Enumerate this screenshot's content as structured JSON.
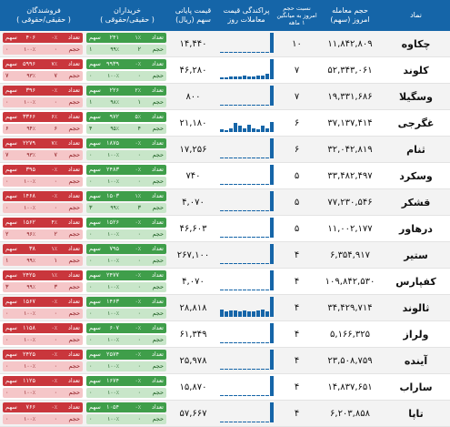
{
  "header": {
    "symbol": "نماد",
    "volume": "حجم معامله\nامروز (سهم)",
    "avg_ratio": "نسبت حجم\nامروز به میانگین\n۱ ماهه",
    "spark": "پراکندگی قیمت\nمعاملات روز",
    "price": "قیمت پایانی\nسهم (ریال)",
    "buyers": "خریداران\n( حقیقی/حقوقی )",
    "sellers": "فروشندگان\n( حقیقی/حقوقی )"
  },
  "colors": {
    "header_bg": "#1565a8",
    "spark_bar": "#1565a8",
    "buyer_bar": "#3f9e4a",
    "buyer_bar_light": "#c8e6c9",
    "seller_bar": "#c9363c",
    "seller_bar_light": "#f5c6c8"
  },
  "labels": {
    "count": "تعداد",
    "volume": "حجم",
    "share": "سهم"
  },
  "rows": [
    {
      "symbol": "چکاوه",
      "volume": "۱۱,۸۴۲,۸۰۹",
      "avg": "۱۰",
      "price": "۱۴,۴۴۰",
      "spark": [
        0.05,
        0.05,
        0.05,
        0.05,
        0.05,
        0.05,
        0.05,
        0.05,
        0.05,
        0.05,
        0.05,
        1.0
      ],
      "buyers": {
        "pct1": "۱٪",
        "n1": "۲۴۱",
        "n2": "۲",
        "pct2": "۹۹٪",
        "n3": "۱"
      },
      "sellers": {
        "pct1": "۰٪",
        "n1": "۴۰۶",
        "n2": "۰",
        "pct2": "۱۰۰٪",
        "n3": "۰"
      }
    },
    {
      "symbol": "کلوند",
      "volume": "۵۲,۳۴۳,۰۶۱",
      "avg": "۷",
      "price": "۴۶,۲۸۰",
      "spark": [
        0.1,
        0.1,
        0.15,
        0.15,
        0.15,
        0.2,
        0.15,
        0.15,
        0.2,
        0.2,
        0.25,
        1.0
      ],
      "buyers": {
        "pct1": "۰٪",
        "n1": "۹۹۳۹",
        "n2": "۰",
        "pct2": "۱۰۰٪",
        "n3": "۰"
      },
      "sellers": {
        "pct1": "۷٪",
        "n1": "۵۹۹۶",
        "n2": "۷",
        "pct2": "۹۳٪",
        "n3": "۷"
      }
    },
    {
      "symbol": "وسگیلا",
      "volume": "۱۹,۳۳۱,۶۸۶",
      "avg": "۷",
      "price": "۸۰۰",
      "spark": [
        0.05,
        0.05,
        0.05,
        0.05,
        0.05,
        0.05,
        0.05,
        0.05,
        0.05,
        0.05,
        0.05,
        1.0
      ],
      "buyers": {
        "pct1": "۲٪",
        "n1": "۲۲۶",
        "n2": "۱",
        "pct2": "۹۸٪",
        "n3": "۱"
      },
      "sellers": {
        "pct1": "۰٪",
        "n1": "۳۹۶",
        "n2": "۰",
        "pct2": "۱۰۰٪",
        "n3": "۰"
      }
    },
    {
      "symbol": "غگرجی",
      "volume": "۳۷,۱۳۷,۴۱۴",
      "avg": "۶",
      "price": "۲۱,۱۸۰",
      "spark": [
        0.15,
        0.1,
        0.2,
        0.45,
        0.3,
        0.2,
        0.35,
        0.2,
        0.15,
        0.3,
        0.2,
        0.5
      ],
      "buyers": {
        "pct1": "۵٪",
        "n1": "۹۷۲",
        "n2": "۴",
        "pct2": "۹۵٪",
        "n3": "۴"
      },
      "sellers": {
        "pct1": "۶٪",
        "n1": "۳۳۶۶",
        "n2": "۶",
        "pct2": "۹۴٪",
        "n3": "۶"
      }
    },
    {
      "symbol": "ثنام",
      "volume": "۳۲,۰۴۲,۸۱۹",
      "avg": "۶",
      "price": "۱۷,۲۵۶",
      "spark": [
        0.05,
        0.05,
        0.05,
        0.05,
        0.05,
        0.05,
        0.05,
        0.05,
        0.05,
        0.05,
        0.05,
        1.0
      ],
      "buyers": {
        "pct1": "۰٪",
        "n1": "۱۸۷۵",
        "n2": "۰",
        "pct2": "۱۰۰٪",
        "n3": "۰"
      },
      "sellers": {
        "pct1": "۷٪",
        "n1": "۲۲۷۹",
        "n2": "۷",
        "pct2": "۹۳٪",
        "n3": "۷"
      }
    },
    {
      "symbol": "وسکرد",
      "volume": "۳۳,۴۸۲,۴۹۷",
      "avg": "۵",
      "price": "۷۴۰",
      "spark": [
        0.05,
        0.05,
        0.05,
        0.05,
        0.05,
        0.05,
        0.05,
        0.05,
        0.05,
        0.05,
        0.05,
        1.0
      ],
      "buyers": {
        "pct1": "۰٪",
        "n1": "۲۴۸۳",
        "n2": "۰",
        "pct2": "۱۰۰٪",
        "n3": "۰"
      },
      "sellers": {
        "pct1": "۰٪",
        "n1": "۳۹۵",
        "n2": "۰",
        "pct2": "۱۰۰٪",
        "n3": "۰"
      }
    },
    {
      "symbol": "قشکر",
      "volume": "۷۷,۲۳۰,۵۴۶",
      "avg": "۵",
      "price": "۴,۰۷۰",
      "spark": [
        0.05,
        0.05,
        0.05,
        0.05,
        0.05,
        0.05,
        0.05,
        0.05,
        0.05,
        0.05,
        0.05,
        1.0
      ],
      "buyers": {
        "pct1": "۱٪",
        "n1": "۱۵۰۳",
        "n2": "۳",
        "pct2": "۹۹٪",
        "n3": "۳"
      },
      "sellers": {
        "pct1": "۰٪",
        "n1": "۱۴۶۸",
        "n2": "۰",
        "pct2": "۱۰۰٪",
        "n3": "۰"
      }
    },
    {
      "symbol": "درهاور",
      "volume": "۱۱,۰۰۲,۱۷۷",
      "avg": "۵",
      "price": "۴۶,۶۰۳",
      "spark": [
        0.05,
        0.05,
        0.05,
        0.05,
        0.05,
        0.05,
        0.05,
        0.05,
        0.05,
        0.05,
        0.05,
        1.0
      ],
      "buyers": {
        "pct1": "۰٪",
        "n1": "۱۵۲۶",
        "n2": "۰",
        "pct2": "۱۰۰٪",
        "n3": "۰"
      },
      "sellers": {
        "pct1": "۴٪",
        "n1": "۱۵۶۲",
        "n2": "۲",
        "pct2": "۹۶٪",
        "n3": "۲"
      }
    },
    {
      "symbol": "ستیر",
      "volume": "۶,۳۵۴,۹۱۷",
      "avg": "۴",
      "price": "۲۶۷,۱۰۰",
      "spark": [
        0.05,
        0.05,
        0.05,
        0.05,
        0.05,
        0.05,
        0.05,
        0.05,
        0.05,
        0.05,
        0.05,
        1.0
      ],
      "buyers": {
        "pct1": "۰٪",
        "n1": "۷۹۵",
        "n2": "۰",
        "pct2": "۱۰۰٪",
        "n3": "۰"
      },
      "sellers": {
        "pct1": "۱٪",
        "n1": "۳۸",
        "n2": "۱",
        "pct2": "۹۹٪",
        "n3": "۱"
      }
    },
    {
      "symbol": "کفپارس",
      "volume": "۱۰۹,۸۴۲,۵۳۰",
      "avg": "۴",
      "price": "۴,۰۷۰",
      "spark": [
        0.05,
        0.05,
        0.05,
        0.05,
        0.05,
        0.05,
        0.05,
        0.05,
        0.05,
        0.05,
        0.05,
        1.0
      ],
      "buyers": {
        "pct1": "۰٪",
        "n1": "۲۴۷۷",
        "n2": "۰",
        "pct2": "۱۰۰٪",
        "n3": "۰"
      },
      "sellers": {
        "pct1": "۱٪",
        "n1": "۲۴۲۵",
        "n2": "۳",
        "pct2": "۹۹٪",
        "n3": "۳"
      }
    },
    {
      "symbol": "ثالوند",
      "volume": "۳۴,۴۲۹,۷۱۴",
      "avg": "۴",
      "price": "۲۸,۸۱۸",
      "spark": [
        0.35,
        0.25,
        0.3,
        0.3,
        0.25,
        0.3,
        0.25,
        0.25,
        0.3,
        0.35,
        0.25,
        1.0
      ],
      "buyers": {
        "pct1": "۰٪",
        "n1": "۱۴۶۳",
        "n2": "۰",
        "pct2": "۱۰۰٪",
        "n3": "۰"
      },
      "sellers": {
        "pct1": "۰٪",
        "n1": "۱۵۶۷",
        "n2": "۰",
        "pct2": "۱۰۰٪",
        "n3": "۰"
      }
    },
    {
      "symbol": "ولراز",
      "volume": "۵,۱۶۶,۳۲۵",
      "avg": "۴",
      "price": "۶۱,۳۴۹",
      "spark": [
        0.05,
        0.05,
        0.05,
        0.05,
        0.05,
        0.05,
        0.05,
        0.05,
        0.05,
        0.05,
        0.05,
        1.0
      ],
      "buyers": {
        "pct1": "۰٪",
        "n1": "۶۰۷",
        "n2": "۰",
        "pct2": "۱۰۰٪",
        "n3": "۰"
      },
      "sellers": {
        "pct1": "۰٪",
        "n1": "۱۱۵۸",
        "n2": "۰",
        "pct2": "۱۰۰٪",
        "n3": "۰"
      }
    },
    {
      "symbol": "آینده",
      "volume": "۲۳,۵۰۸,۷۵۹",
      "avg": "۴",
      "price": "۲۵,۹۷۸",
      "spark": [
        0.05,
        0.05,
        0.05,
        0.05,
        0.05,
        0.05,
        0.05,
        0.05,
        0.05,
        0.05,
        0.05,
        1.0
      ],
      "buyers": {
        "pct1": "۰٪",
        "n1": "۲۵۷۴",
        "n2": "۰",
        "pct2": "۱۰۰٪",
        "n3": "۰"
      },
      "sellers": {
        "pct1": "۰٪",
        "n1": "۲۴۲۵",
        "n2": "۰",
        "pct2": "۱۰۰٪",
        "n3": "۰"
      }
    },
    {
      "symbol": "ساراب",
      "volume": "۱۴,۸۳۷,۶۵۱",
      "avg": "۴",
      "price": "۱۵,۸۷۰",
      "spark": [
        0.05,
        0.05,
        0.05,
        0.05,
        0.05,
        0.05,
        0.05,
        0.05,
        0.05,
        0.05,
        0.05,
        1.0
      ],
      "buyers": {
        "pct1": "۰٪",
        "n1": "۱۶۷۴",
        "n2": "۰",
        "pct2": "۱۰۰٪",
        "n3": "۰"
      },
      "sellers": {
        "pct1": "۰٪",
        "n1": "۱۱۲۵",
        "n2": "۰",
        "pct2": "۱۰۰٪",
        "n3": "۰"
      }
    },
    {
      "symbol": "تاپا",
      "volume": "۶,۲۰۳,۸۵۸",
      "avg": "۴",
      "price": "۵۷,۶۶۷",
      "spark": [
        0.05,
        0.05,
        0.05,
        0.05,
        0.05,
        0.05,
        0.05,
        0.05,
        0.05,
        0.05,
        0.05,
        1.0
      ],
      "buyers": {
        "pct1": "۰٪",
        "n1": "۱۰۵۴",
        "n2": "۰",
        "pct2": "۱۰۰٪",
        "n3": "۰"
      },
      "sellers": {
        "pct1": "۰٪",
        "n1": "۷۶۶",
        "n2": "۰",
        "pct2": "۱۰۰٪",
        "n3": "۰"
      }
    }
  ]
}
